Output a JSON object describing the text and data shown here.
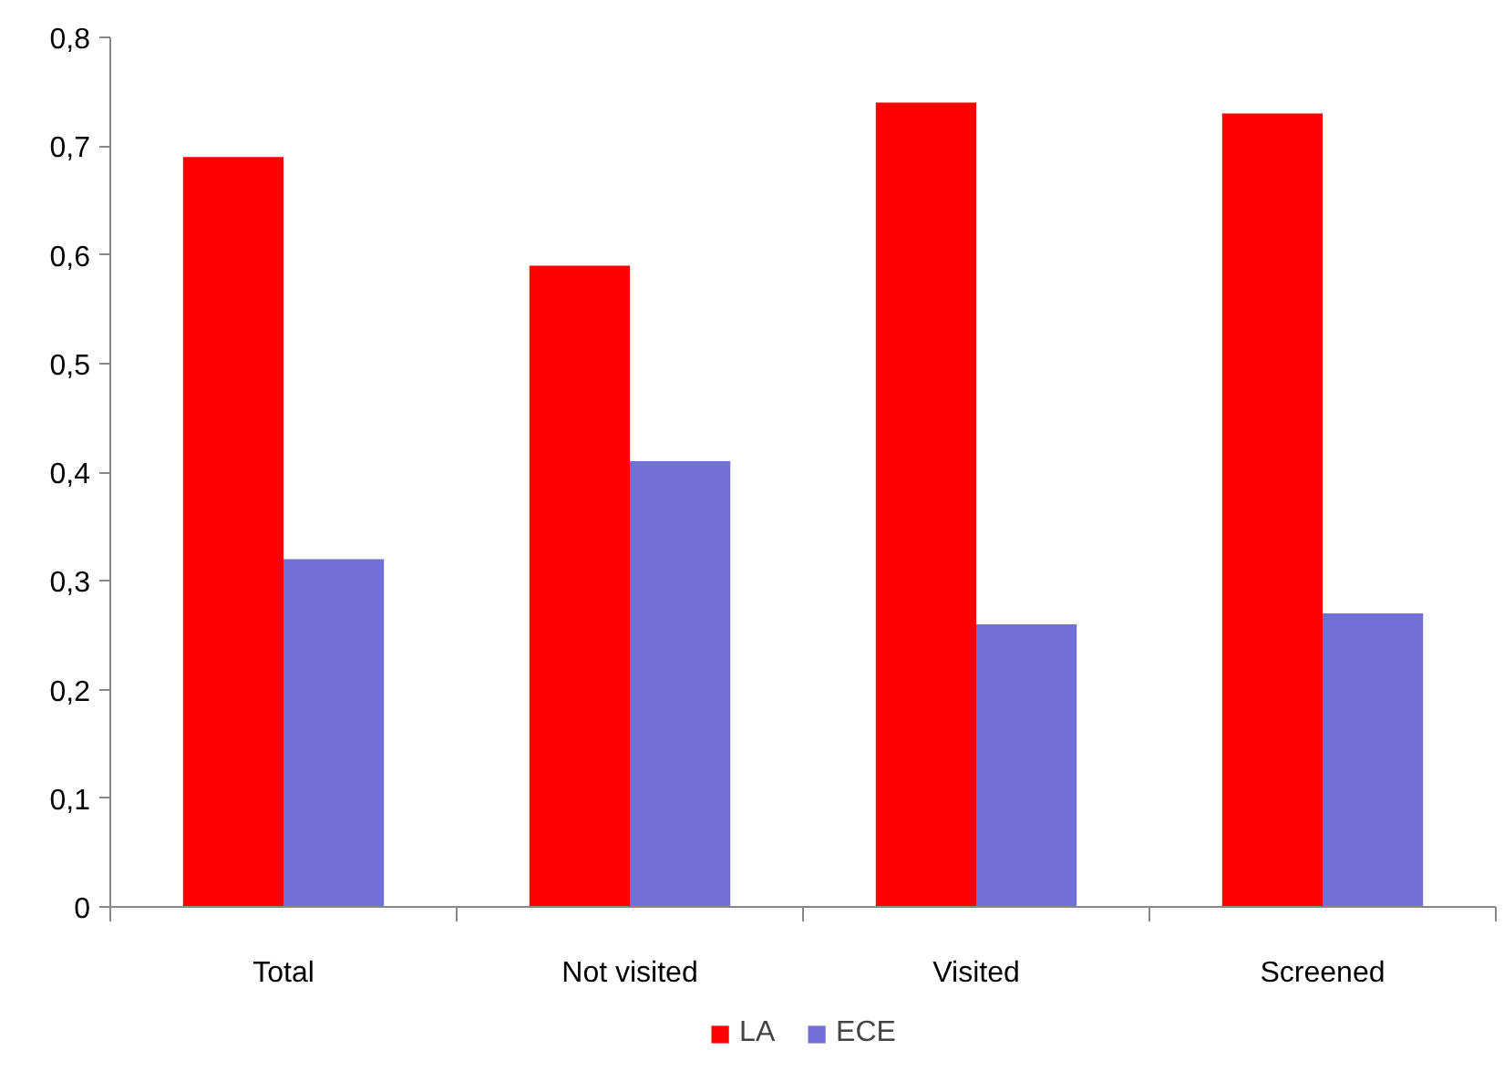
{
  "chart_data": {
    "type": "bar",
    "categories": [
      "Total",
      "Not visited",
      "Visited",
      "Screened"
    ],
    "series": [
      {
        "name": "LA",
        "color": "#ff0000",
        "values": [
          0.69,
          0.59,
          0.74,
          0.73
        ]
      },
      {
        "name": "ECE",
        "color": "#6f6fd6",
        "values": [
          0.32,
          0.41,
          0.26,
          0.27
        ]
      }
    ],
    "ylim": [
      0,
      0.8
    ],
    "yticks": [
      {
        "value": 0,
        "label": "0"
      },
      {
        "value": 0.1,
        "label": "0,1"
      },
      {
        "value": 0.2,
        "label": "0,2"
      },
      {
        "value": 0.3,
        "label": "0,3"
      },
      {
        "value": 0.4,
        "label": "0,4"
      },
      {
        "value": 0.5,
        "label": "0,5"
      },
      {
        "value": 0.6,
        "label": "0,6"
      },
      {
        "value": 0.7,
        "label": "0,7"
      },
      {
        "value": 0.8,
        "label": "0,8"
      }
    ],
    "grid": false,
    "legend": "bottom"
  }
}
